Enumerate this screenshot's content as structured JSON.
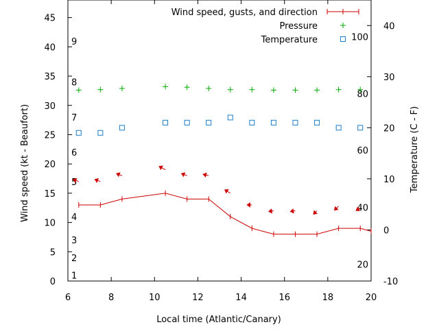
{
  "chart_data": {
    "type": "line",
    "xlabel": "Local time (Atlantic/Canary)",
    "ylabel": "Wind speed (kt - Beaufort)",
    "y2label": "Temperature (C - F)",
    "xlim": [
      6,
      20
    ],
    "ylim": [
      0,
      48
    ],
    "y2lim": [
      -10,
      45
    ],
    "x_ticks": [
      6,
      8,
      10,
      12,
      14,
      16,
      18,
      20
    ],
    "y_ticks": [
      0,
      5,
      10,
      15,
      20,
      25,
      30,
      35,
      40,
      45
    ],
    "y2_ticks": [
      -10,
      0,
      10,
      20,
      30,
      40
    ],
    "beaufort_labels": [
      {
        "label": "1",
        "at": 1
      },
      {
        "label": "2",
        "at": 4
      },
      {
        "label": "3",
        "at": 7
      },
      {
        "label": "4",
        "at": 11
      },
      {
        "label": "5",
        "at": 17
      },
      {
        "label": "6",
        "at": 22
      },
      {
        "label": "7",
        "at": 28
      },
      {
        "label": "8",
        "at": 34
      },
      {
        "label": "9",
        "at": 41
      }
    ],
    "fahrenheit_labels": [
      {
        "label": "20",
        "at": -6.7
      },
      {
        "label": "40",
        "at": 4.4
      },
      {
        "label": "60",
        "at": 15.6
      },
      {
        "label": "80",
        "at": 26.7
      },
      {
        "label": "100",
        "at": 37.8
      }
    ],
    "legend_position": "top-right",
    "series": [
      {
        "name": "Wind speed, gusts, and direction",
        "axis": "left",
        "color": "#cc0000",
        "style": "line",
        "x": [
          6.5,
          7.5,
          8.5,
          10.5,
          11.5,
          12.5,
          13.5,
          14.5,
          15.5,
          16.5,
          17.5,
          18.5,
          19.5,
          20.0
        ],
        "values": [
          13,
          13,
          14,
          15,
          14,
          14,
          11,
          9,
          8,
          8,
          8,
          9,
          9,
          8.5
        ],
        "direction_arrows": [
          {
            "x": 6.5,
            "y": 17,
            "dx": -8,
            "dy": -3
          },
          {
            "x": 7.5,
            "y": 17,
            "dx": -8,
            "dy": -3
          },
          {
            "x": 8.5,
            "y": 18,
            "dx": -8,
            "dy": -3
          },
          {
            "x": 10.5,
            "y": 19,
            "dx": -9,
            "dy": -5
          },
          {
            "x": 11.5,
            "y": 18,
            "dx": -8,
            "dy": -3
          },
          {
            "x": 12.5,
            "y": 18,
            "dx": -8,
            "dy": -2
          },
          {
            "x": 13.5,
            "y": 15,
            "dx": -8,
            "dy": -5
          },
          {
            "x": 14.5,
            "y": 13,
            "dx": -7,
            "dy": 0
          },
          {
            "x": 15.5,
            "y": 12,
            "dx": -7,
            "dy": 1
          },
          {
            "x": 16.5,
            "y": 12,
            "dx": -7,
            "dy": 1
          },
          {
            "x": 17.5,
            "y": 12,
            "dx": -5,
            "dy": 5
          },
          {
            "x": 18.5,
            "y": 12.8,
            "dx": -6,
            "dy": 6
          },
          {
            "x": 19.5,
            "y": 12.5,
            "dx": -6,
            "dy": 4
          }
        ]
      },
      {
        "name": "Pressure",
        "axis": "left",
        "color": "#00aa00",
        "style": "plus",
        "x": [
          6.5,
          7.5,
          8.5,
          10.5,
          11.5,
          12.5,
          13.5,
          14.5,
          15.5,
          16.5,
          17.5,
          18.5,
          19.5
        ],
        "values": [
          32.6,
          32.7,
          32.9,
          33.2,
          33.1,
          32.9,
          32.7,
          32.7,
          32.6,
          32.6,
          32.6,
          32.7,
          32.7
        ]
      },
      {
        "name": "Temperature",
        "axis": "right",
        "color": "#1a7cc9",
        "style": "square",
        "x": [
          6.5,
          7.5,
          8.5,
          10.5,
          11.5,
          12.5,
          13.5,
          14.5,
          15.5,
          16.5,
          17.5,
          18.5,
          19.5
        ],
        "values": [
          19,
          19,
          20,
          21,
          21,
          21,
          22,
          21,
          21,
          21,
          21,
          20,
          20
        ]
      }
    ]
  }
}
